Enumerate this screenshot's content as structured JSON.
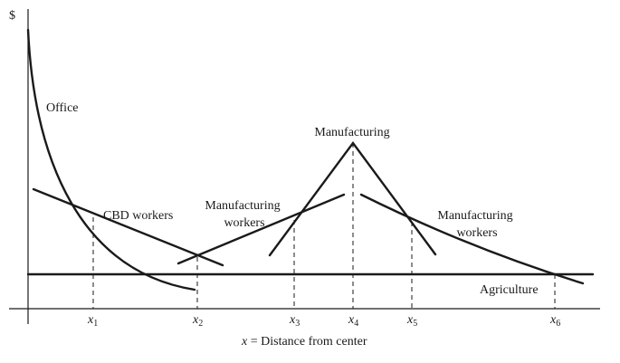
{
  "axes": {
    "y_label": "$",
    "x_label_var": "x",
    "x_label_rest": " = Distance from center"
  },
  "ticks": [
    {
      "base": "x",
      "sub": "1"
    },
    {
      "base": "x",
      "sub": "2"
    },
    {
      "base": "x",
      "sub": "3"
    },
    {
      "base": "x",
      "sub": "4"
    },
    {
      "base": "x",
      "sub": "5"
    },
    {
      "base": "x",
      "sub": "6"
    }
  ],
  "labels": {
    "office": "Office",
    "cbd_workers": "CBD workers",
    "manufacturing_workers_1_line1": "Manufacturing",
    "manufacturing_workers_1_line2": "workers",
    "manufacturing": "Manufacturing",
    "manufacturing_workers_2_line1": "Manufacturing",
    "manufacturing_workers_2_line2": "workers",
    "agriculture": "Agriculture"
  }
}
